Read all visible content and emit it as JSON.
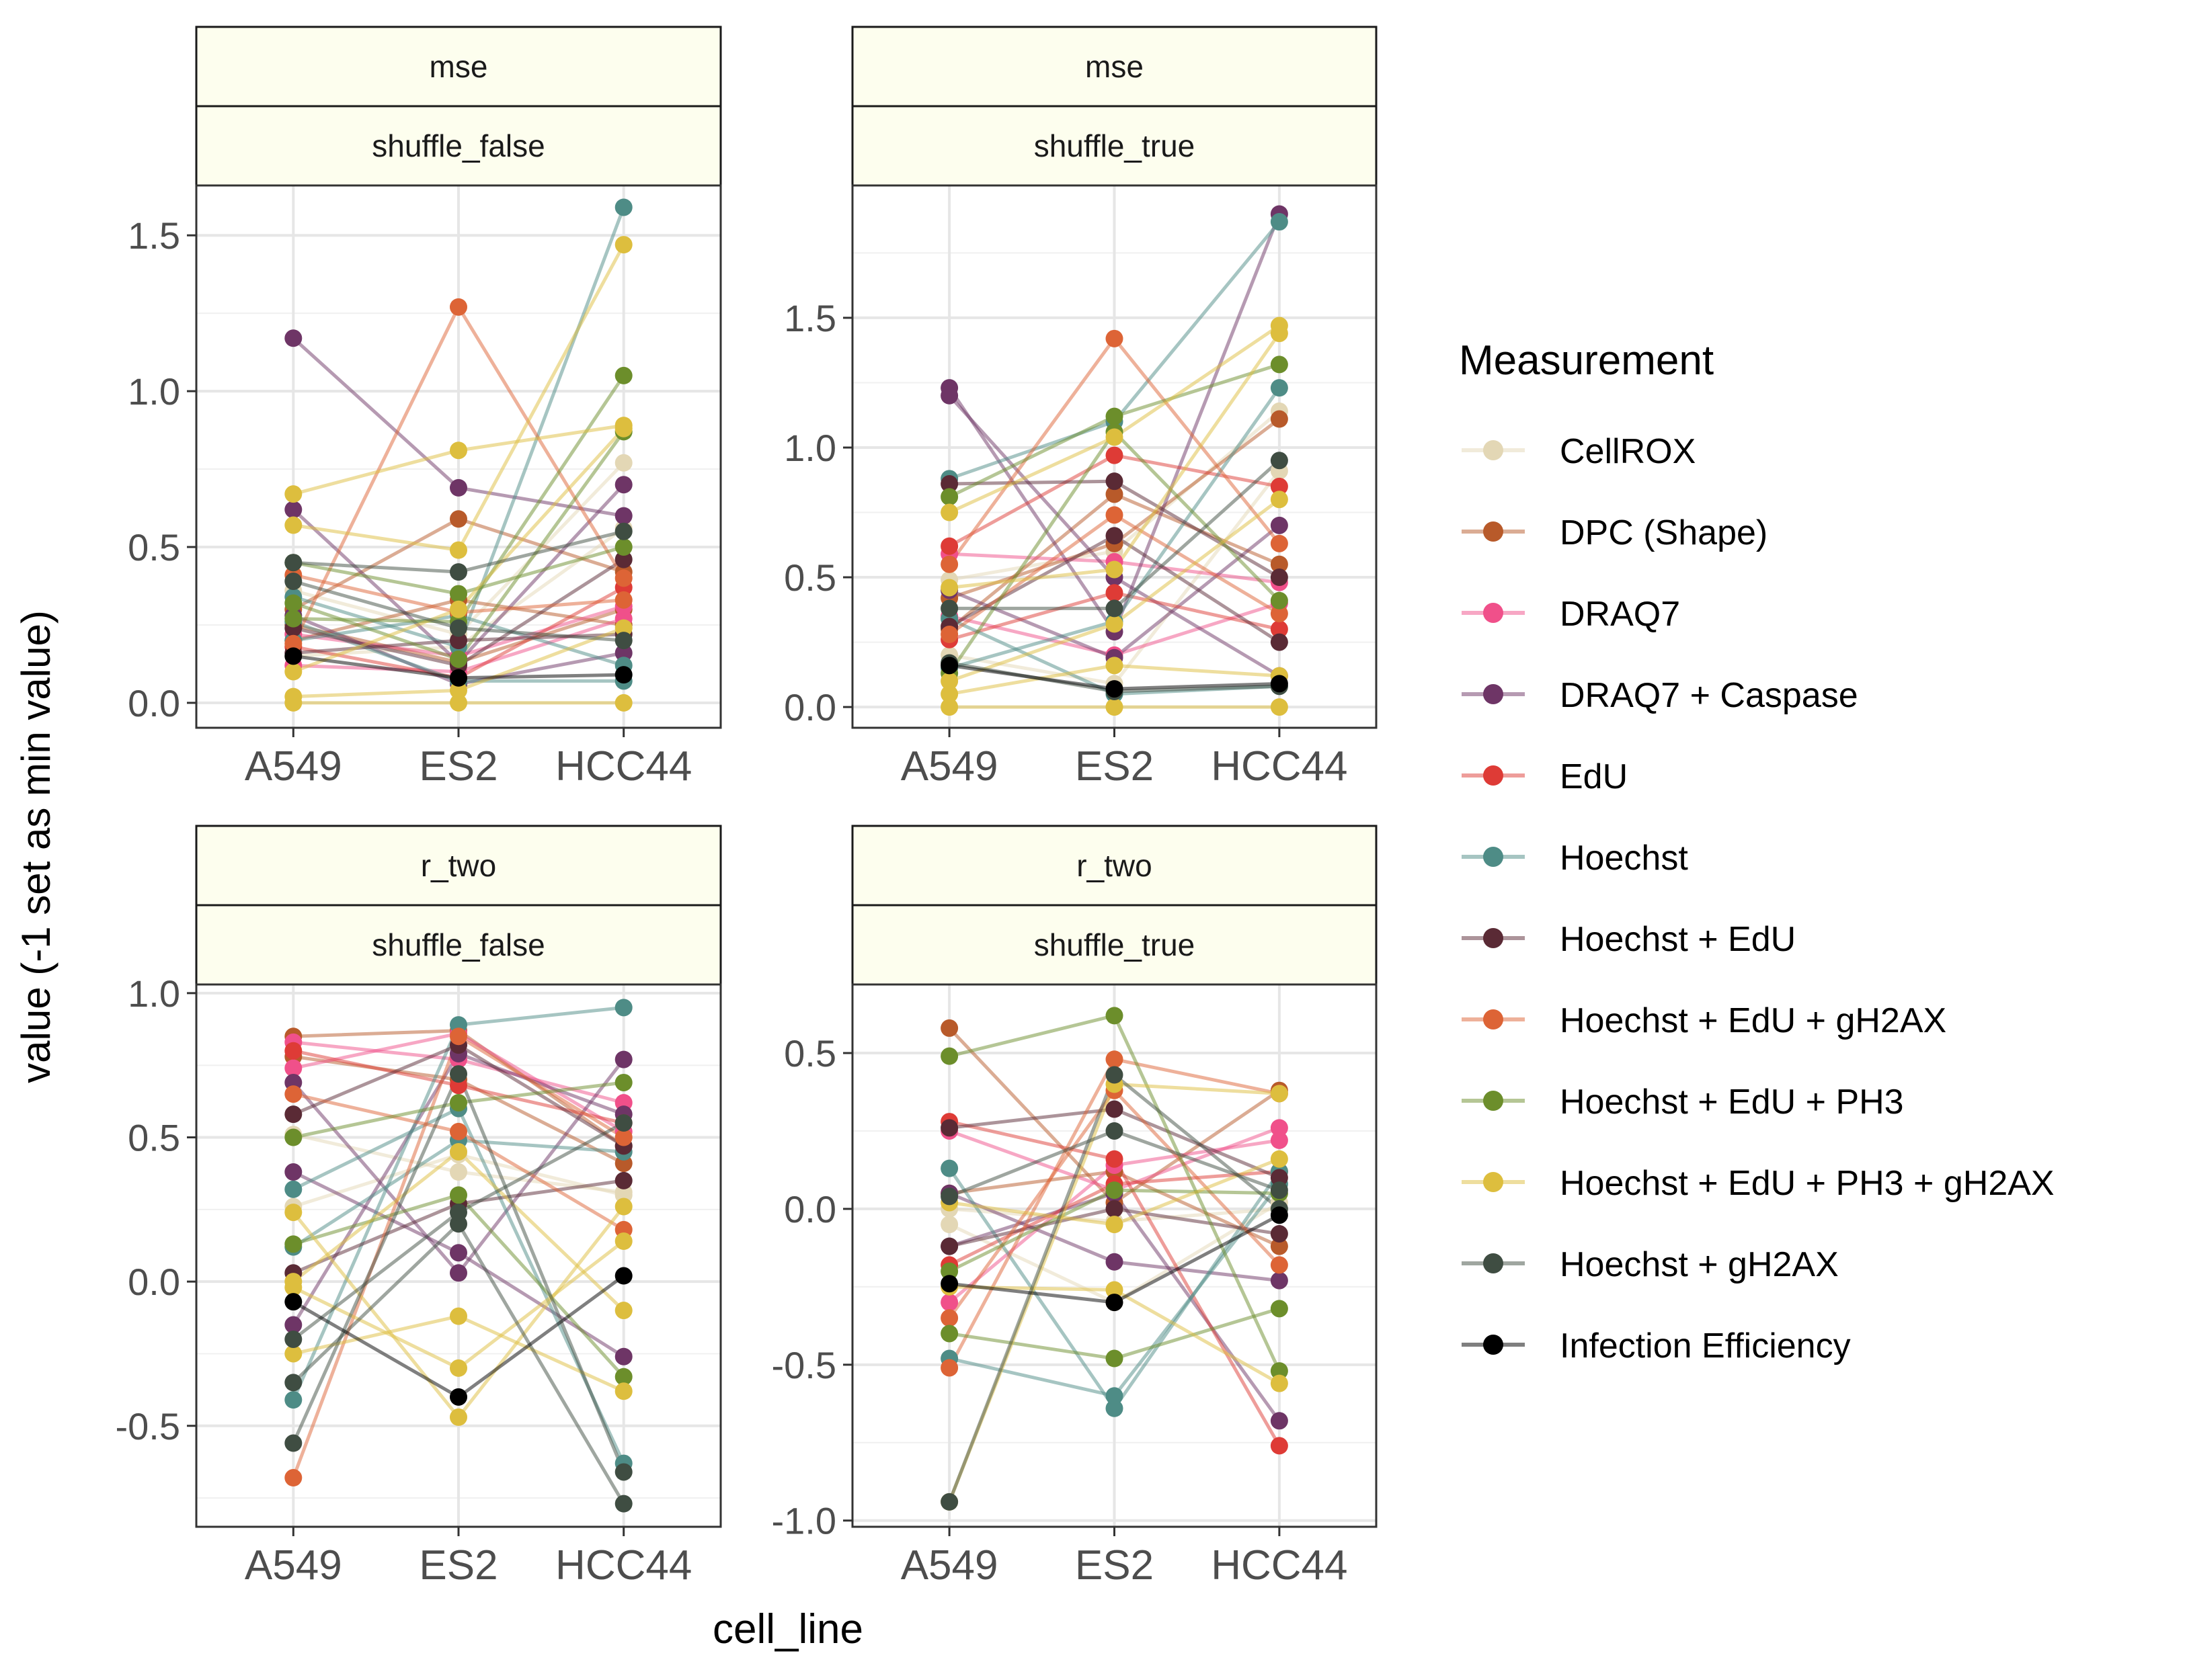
{
  "xlabel": "cell_line",
  "ylabel": "value (-1 set as min value)",
  "legend": {
    "title": "Measurement",
    "position": "right",
    "items": [
      {
        "label": "CellROX",
        "color": "#E3D7B5"
      },
      {
        "label": "DPC (Shape)",
        "color": "#B85A2A"
      },
      {
        "label": "DRAQ7",
        "color": "#F0508A"
      },
      {
        "label": "DRAQ7 + Caspase",
        "color": "#6E3566"
      },
      {
        "label": "EdU",
        "color": "#DE3B36"
      },
      {
        "label": "Hoechst",
        "color": "#4E8C86"
      },
      {
        "label": "Hoechst + EdU",
        "color": "#5A2A35"
      },
      {
        "label": "Hoechst + EdU + gH2AX",
        "color": "#DD6436"
      },
      {
        "label": "Hoechst + EdU + PH3",
        "color": "#6C8E2B"
      },
      {
        "label": "Hoechst + EdU + PH3 + gH2AX",
        "color": "#DDBE3E"
      },
      {
        "label": "Hoechst + gH2AX",
        "color": "#3F4D42"
      },
      {
        "label": "Infection Efficiency",
        "color": "#000000"
      }
    ]
  },
  "chart_data": [
    {
      "type": "line",
      "strip_top": "mse",
      "strip_bottom": "shuffle_false",
      "categories": [
        "A549",
        "ES2",
        "HCC44"
      ],
      "ylim": [
        -0.08,
        1.66
      ],
      "yticks": [
        0.0,
        0.5,
        1.0,
        1.5
      ],
      "ytick_labels": [
        "0.0",
        "0.5",
        "1.0",
        "1.5"
      ],
      "series": [
        {
          "measurement": "CellROX",
          "values": [
            0.36,
            0.22,
            0.77
          ]
        },
        {
          "measurement": "CellROX",
          "values": [
            0.15,
            0.18,
            0.56
          ]
        },
        {
          "measurement": "DPC (Shape)",
          "values": [
            0.3,
            0.59,
            0.42
          ]
        },
        {
          "measurement": "DPC (Shape)",
          "values": [
            0.2,
            0.33,
            0.25
          ]
        },
        {
          "measurement": "DPC (Shape)",
          "values": [
            0.25,
            0.13,
            0.3
          ]
        },
        {
          "measurement": "DRAQ7",
          "values": [
            0.22,
            0.15,
            0.31
          ]
        },
        {
          "measurement": "DRAQ7",
          "values": [
            0.12,
            0.1,
            0.27
          ]
        },
        {
          "measurement": "DRAQ7 + Caspase",
          "values": [
            1.17,
            0.69,
            0.6
          ]
        },
        {
          "measurement": "DRAQ7 + Caspase",
          "values": [
            0.62,
            0.13,
            0.7
          ]
        },
        {
          "measurement": "DRAQ7 + Caspase",
          "values": [
            0.28,
            0.06,
            0.16
          ]
        },
        {
          "measurement": "EdU",
          "values": [
            0.18,
            0.08,
            0.37
          ]
        },
        {
          "measurement": "Hoechst",
          "values": [
            0.34,
            0.18,
            1.59
          ]
        },
        {
          "measurement": "Hoechst",
          "values": [
            0.26,
            0.07,
            0.07
          ]
        },
        {
          "measurement": "Hoechst",
          "values": [
            0.2,
            0.28,
            0.12
          ]
        },
        {
          "measurement": "Hoechst + EdU",
          "values": [
            0.24,
            0.12,
            0.46
          ]
        },
        {
          "measurement": "Hoechst + EdU",
          "values": [
            0.16,
            0.2,
            0.22
          ]
        },
        {
          "measurement": "Hoechst + EdU + gH2AX",
          "values": [
            0.19,
            1.27,
            0.4
          ]
        },
        {
          "measurement": "Hoechst + EdU + gH2AX",
          "values": [
            0.41,
            0.29,
            0.33
          ]
        },
        {
          "measurement": "Hoechst + EdU + PH3",
          "values": [
            0.27,
            0.26,
            1.05
          ]
        },
        {
          "measurement": "Hoechst + EdU + PH3",
          "values": [
            0.32,
            0.14,
            0.87
          ]
        },
        {
          "measurement": "Hoechst + EdU + PH3",
          "values": [
            0.45,
            0.35,
            0.5
          ]
        },
        {
          "measurement": "Hoechst + EdU + PH3 + gH2AX",
          "values": [
            0.67,
            0.81,
            0.89
          ]
        },
        {
          "measurement": "Hoechst + EdU + PH3 + gH2AX",
          "values": [
            0.57,
            0.49,
            1.47
          ]
        },
        {
          "measurement": "Hoechst + EdU + PH3 + gH2AX",
          "values": [
            0.1,
            0.3,
            0.88
          ]
        },
        {
          "measurement": "Hoechst + EdU + PH3 + gH2AX",
          "values": [
            0.0,
            0.0,
            0.0
          ]
        },
        {
          "measurement": "Hoechst + EdU + PH3 + gH2AX",
          "values": [
            0.02,
            0.04,
            0.24
          ]
        },
        {
          "measurement": "Hoechst + gH2AX",
          "values": [
            0.45,
            0.42,
            0.55
          ]
        },
        {
          "measurement": "Hoechst + gH2AX",
          "values": [
            0.39,
            0.24,
            0.2
          ]
        },
        {
          "measurement": "Infection Efficiency",
          "values": [
            0.15,
            0.08,
            0.09
          ]
        }
      ]
    },
    {
      "type": "line",
      "strip_top": "mse",
      "strip_bottom": "shuffle_true",
      "categories": [
        "A549",
        "ES2",
        "HCC44"
      ],
      "ylim": [
        -0.08,
        2.01
      ],
      "yticks": [
        0.0,
        0.5,
        1.0,
        1.5
      ],
      "ytick_labels": [
        "0.0",
        "0.5",
        "1.0",
        "1.5"
      ],
      "series": [
        {
          "measurement": "CellROX",
          "values": [
            0.49,
            0.6,
            1.14
          ]
        },
        {
          "measurement": "CellROX",
          "values": [
            0.2,
            0.09,
            0.91
          ]
        },
        {
          "measurement": "DPC (Shape)",
          "values": [
            0.42,
            0.63,
            1.11
          ]
        },
        {
          "measurement": "DPC (Shape)",
          "values": [
            0.3,
            0.82,
            0.55
          ]
        },
        {
          "measurement": "DRAQ7",
          "values": [
            0.59,
            0.56,
            0.48
          ]
        },
        {
          "measurement": "DRAQ7",
          "values": [
            0.35,
            0.2,
            0.4
          ]
        },
        {
          "measurement": "DRAQ7 + Caspase",
          "values": [
            1.23,
            0.29,
            1.9
          ]
        },
        {
          "measurement": "DRAQ7 + Caspase",
          "values": [
            1.2,
            0.5,
            0.12
          ]
        },
        {
          "measurement": "DRAQ7 + Caspase",
          "values": [
            0.45,
            0.19,
            0.7
          ]
        },
        {
          "measurement": "EdU",
          "values": [
            0.62,
            0.97,
            0.85
          ]
        },
        {
          "measurement": "EdU",
          "values": [
            0.26,
            0.44,
            0.3
          ]
        },
        {
          "measurement": "Hoechst",
          "values": [
            0.88,
            1.1,
            1.87
          ]
        },
        {
          "measurement": "Hoechst",
          "values": [
            0.15,
            0.33,
            1.23
          ]
        },
        {
          "measurement": "Hoechst",
          "values": [
            0.34,
            0.05,
            0.08
          ]
        },
        {
          "measurement": "Hoechst + EdU",
          "values": [
            0.86,
            0.87,
            0.5
          ]
        },
        {
          "measurement": "Hoechst + EdU",
          "values": [
            0.31,
            0.66,
            0.25
          ]
        },
        {
          "measurement": "Hoechst + EdU + gH2AX",
          "values": [
            0.55,
            1.42,
            0.63
          ]
        },
        {
          "measurement": "Hoechst + EdU + gH2AX",
          "values": [
            0.28,
            0.74,
            0.36
          ]
        },
        {
          "measurement": "Hoechst + EdU + PH3",
          "values": [
            0.81,
            1.12,
            1.32
          ]
        },
        {
          "measurement": "Hoechst + EdU + PH3",
          "values": [
            0.13,
            1.06,
            0.41
          ]
        },
        {
          "measurement": "Hoechst + EdU + PH3 + gH2AX",
          "values": [
            0.75,
            1.04,
            1.47
          ]
        },
        {
          "measurement": "Hoechst + EdU + PH3 + gH2AX",
          "values": [
            0.46,
            0.53,
            1.44
          ]
        },
        {
          "measurement": "Hoechst + EdU + PH3 + gH2AX",
          "values": [
            0.1,
            0.32,
            0.8
          ]
        },
        {
          "measurement": "Hoechst + EdU + PH3 + gH2AX",
          "values": [
            0.0,
            0.0,
            0.0
          ]
        },
        {
          "measurement": "Hoechst + EdU + PH3 + gH2AX",
          "values": [
            0.05,
            0.16,
            0.12
          ]
        },
        {
          "measurement": "Hoechst + gH2AX",
          "values": [
            0.38,
            0.38,
            0.95
          ]
        },
        {
          "measurement": "Hoechst + gH2AX",
          "values": [
            0.17,
            0.06,
            0.08
          ]
        },
        {
          "measurement": "Infection Efficiency",
          "values": [
            0.16,
            0.07,
            0.09
          ]
        }
      ]
    },
    {
      "type": "line",
      "strip_top": "r_two",
      "strip_bottom": "shuffle_false",
      "categories": [
        "A549",
        "ES2",
        "HCC44"
      ],
      "ylim": [
        -0.85,
        1.03
      ],
      "yticks": [
        -0.5,
        0.0,
        0.5,
        1.0
      ],
      "ytick_labels": [
        "-0.5",
        "0.0",
        "0.5",
        "1.0"
      ],
      "series": [
        {
          "measurement": "CellROX",
          "values": [
            0.51,
            0.38,
            0.31
          ]
        },
        {
          "measurement": "CellROX",
          "values": [
            0.26,
            0.44,
            0.3
          ]
        },
        {
          "measurement": "DPC (Shape)",
          "values": [
            0.85,
            0.87,
            0.47
          ]
        },
        {
          "measurement": "DPC (Shape)",
          "values": [
            0.78,
            0.7,
            0.41
          ]
        },
        {
          "measurement": "DRAQ7",
          "values": [
            0.83,
            0.77,
            0.62
          ]
        },
        {
          "measurement": "DRAQ7",
          "values": [
            0.74,
            0.86,
            0.52
          ]
        },
        {
          "measurement": "DRAQ7 + Caspase",
          "values": [
            0.69,
            0.03,
            0.77
          ]
        },
        {
          "measurement": "DRAQ7 + Caspase",
          "values": [
            0.38,
            0.1,
            -0.26
          ]
        },
        {
          "measurement": "DRAQ7 + Caspase",
          "values": [
            -0.15,
            0.79,
            0.58
          ]
        },
        {
          "measurement": "EdU",
          "values": [
            0.8,
            0.68,
            0.55
          ]
        },
        {
          "measurement": "Hoechst",
          "values": [
            -0.41,
            0.89,
            0.95
          ]
        },
        {
          "measurement": "Hoechst",
          "values": [
            0.32,
            0.6,
            -0.63
          ]
        },
        {
          "measurement": "Hoechst",
          "values": [
            0.12,
            0.49,
            0.45
          ]
        },
        {
          "measurement": "Hoechst + EdU",
          "values": [
            0.58,
            0.82,
            0.47
          ]
        },
        {
          "measurement": "Hoechst + EdU",
          "values": [
            0.03,
            0.27,
            0.35
          ]
        },
        {
          "measurement": "Hoechst + EdU + gH2AX",
          "values": [
            -0.68,
            0.85,
            0.5
          ]
        },
        {
          "measurement": "Hoechst + EdU + gH2AX",
          "values": [
            0.65,
            0.52,
            0.18
          ]
        },
        {
          "measurement": "Hoechst + EdU + PH3",
          "values": [
            0.5,
            0.62,
            0.69
          ]
        },
        {
          "measurement": "Hoechst + EdU + PH3",
          "values": [
            0.13,
            0.3,
            -0.33
          ]
        },
        {
          "measurement": "Hoechst + EdU + PH3 + gH2AX",
          "values": [
            0.24,
            -0.47,
            0.26
          ]
        },
        {
          "measurement": "Hoechst + EdU + PH3 + gH2AX",
          "values": [
            -0.25,
            -0.12,
            -0.38
          ]
        },
        {
          "measurement": "Hoechst + EdU + PH3 + gH2AX",
          "values": [
            -0.02,
            -0.3,
            0.14
          ]
        },
        {
          "measurement": "Hoechst + EdU + PH3 + gH2AX",
          "values": [
            0.0,
            0.45,
            -0.1
          ]
        },
        {
          "measurement": "Hoechst + gH2AX",
          "values": [
            -0.56,
            0.72,
            -0.66
          ]
        },
        {
          "measurement": "Hoechst + gH2AX",
          "values": [
            -0.35,
            0.2,
            -0.77
          ]
        },
        {
          "measurement": "Hoechst + gH2AX",
          "values": [
            -0.2,
            0.24,
            0.55
          ]
        },
        {
          "measurement": "Infection Efficiency",
          "values": [
            -0.07,
            -0.4,
            0.02
          ]
        }
      ]
    },
    {
      "type": "line",
      "strip_top": "r_two",
      "strip_bottom": "shuffle_true",
      "categories": [
        "A549",
        "ES2",
        "HCC44"
      ],
      "ylim": [
        -1.02,
        0.72
      ],
      "yticks": [
        -1.0,
        -0.5,
        0.0,
        0.5
      ],
      "ytick_labels": [
        "-1.0",
        "-0.5",
        "0.0",
        "0.5"
      ],
      "series": [
        {
          "measurement": "CellROX",
          "values": [
            0.0,
            -0.04,
            0.0
          ]
        },
        {
          "measurement": "CellROX",
          "values": [
            -0.05,
            -0.3,
            0.02
          ]
        },
        {
          "measurement": "DPC (Shape)",
          "values": [
            0.58,
            0.02,
            0.38
          ]
        },
        {
          "measurement": "DPC (Shape)",
          "values": [
            0.05,
            0.12,
            -0.12
          ]
        },
        {
          "measurement": "DRAQ7",
          "values": [
            0.25,
            0.06,
            0.26
          ]
        },
        {
          "measurement": "DRAQ7",
          "values": [
            -0.3,
            0.14,
            0.22
          ]
        },
        {
          "measurement": "DRAQ7 + Caspase",
          "values": [
            -0.12,
            0.05,
            -0.68
          ]
        },
        {
          "measurement": "DRAQ7 + Caspase",
          "values": [
            0.05,
            -0.17,
            -0.23
          ]
        },
        {
          "measurement": "EdU",
          "values": [
            0.28,
            0.16,
            -0.76
          ]
        },
        {
          "measurement": "EdU",
          "values": [
            -0.18,
            0.08,
            0.12
          ]
        },
        {
          "measurement": "Hoechst",
          "values": [
            0.13,
            -0.64,
            0.12
          ]
        },
        {
          "measurement": "Hoechst",
          "values": [
            -0.48,
            -0.6,
            0.08
          ]
        },
        {
          "measurement": "Hoechst + EdU",
          "values": [
            0.26,
            0.32,
            0.1
          ]
        },
        {
          "measurement": "Hoechst + EdU",
          "values": [
            -0.12,
            0.0,
            -0.08
          ]
        },
        {
          "measurement": "Hoechst + EdU + gH2AX",
          "values": [
            -0.51,
            0.48,
            0.37
          ]
        },
        {
          "measurement": "Hoechst + EdU + gH2AX",
          "values": [
            -0.35,
            0.38,
            -0.18
          ]
        },
        {
          "measurement": "Hoechst + EdU + PH3",
          "values": [
            0.49,
            0.62,
            -0.52
          ]
        },
        {
          "measurement": "Hoechst + EdU + PH3",
          "values": [
            -0.4,
            -0.48,
            -0.32
          ]
        },
        {
          "measurement": "Hoechst + EdU + PH3",
          "values": [
            -0.2,
            0.06,
            0.05
          ]
        },
        {
          "measurement": "Hoechst + EdU + PH3 + gH2AX",
          "values": [
            -0.94,
            0.4,
            0.37
          ]
        },
        {
          "measurement": "Hoechst + EdU + PH3 + gH2AX",
          "values": [
            -0.25,
            -0.26,
            -0.56
          ]
        },
        {
          "measurement": "Hoechst + EdU + PH3 + gH2AX",
          "values": [
            0.02,
            -0.05,
            0.16
          ]
        },
        {
          "measurement": "Hoechst + gH2AX",
          "values": [
            -0.94,
            0.43,
            0.0
          ]
        },
        {
          "measurement": "Hoechst + gH2AX",
          "values": [
            0.04,
            0.25,
            0.06
          ]
        },
        {
          "measurement": "Infection Efficiency",
          "values": [
            -0.24,
            -0.3,
            -0.02
          ]
        }
      ]
    }
  ]
}
